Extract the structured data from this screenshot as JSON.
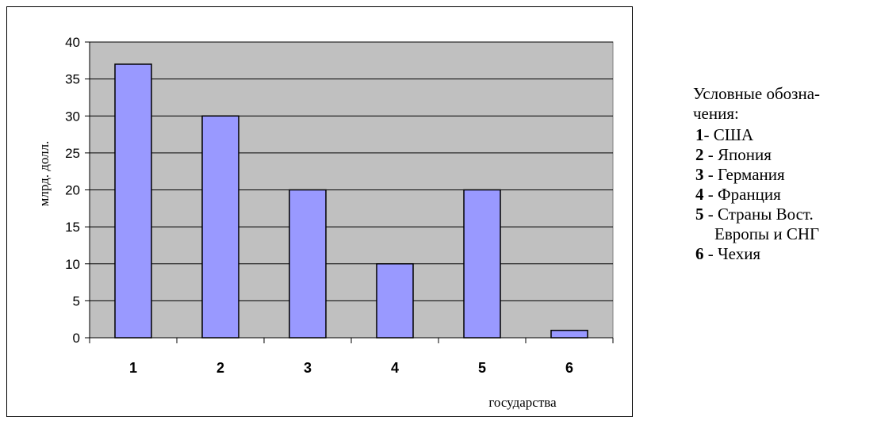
{
  "chart_data": {
    "type": "bar",
    "categories": [
      "1",
      "2",
      "3",
      "4",
      "5",
      "6"
    ],
    "values": [
      37,
      30,
      20,
      10,
      20,
      1
    ],
    "title": "",
    "xlabel": "государства",
    "ylabel": "млрд. долл.",
    "ylim": [
      0,
      40
    ],
    "yticks": [
      0,
      5,
      10,
      15,
      20,
      25,
      30,
      35,
      40
    ],
    "grid": true,
    "colors": {
      "bar": "#9999ff",
      "plot_bg": "#c0c0c0",
      "border": "#000000"
    }
  },
  "legend": {
    "title_line1": "Условные обозна-",
    "title_line2": "чения:",
    "items": [
      {
        "num": "1",
        "sep": "- ",
        "label": "США"
      },
      {
        "num": "2",
        "sep": " - ",
        "label": "Япония"
      },
      {
        "num": "3",
        "sep": " - ",
        "label": "Германия"
      },
      {
        "num": "4",
        "sep": " - ",
        "label": "Франция"
      },
      {
        "num": "5",
        "sep": " - ",
        "label": "Страны Вост."
      },
      {
        "num": "6",
        "sep": " - ",
        "label": "Чехия"
      }
    ],
    "item5_cont": "Европы и СНГ"
  }
}
